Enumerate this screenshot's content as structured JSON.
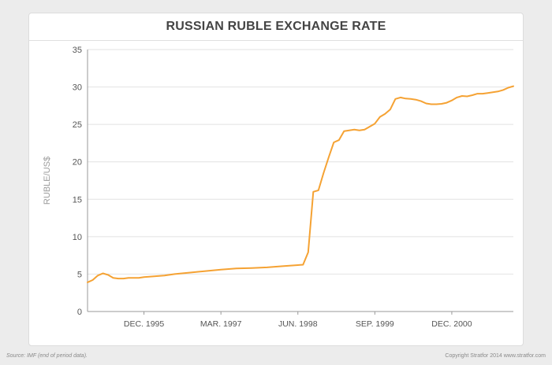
{
  "chart_data": {
    "type": "line",
    "title": "RUSSIAN RUBLE EXCHANGE RATE",
    "ylabel": "RUBLE/US$",
    "xlabel": "",
    "ylim": [
      0,
      35
    ],
    "yticks": [
      0,
      5,
      10,
      15,
      20,
      25,
      30,
      35
    ],
    "xlim": [
      "1995-01",
      "2001-12"
    ],
    "xticks": [
      {
        "label": "DEC. 1995",
        "date": "1995-12"
      },
      {
        "label": "MAR. 1997",
        "date": "1997-03"
      },
      {
        "label": "JUN. 1998",
        "date": "1998-06"
      },
      {
        "label": "SEP. 1999",
        "date": "1999-09"
      },
      {
        "label": "DEC. 2000",
        "date": "2000-12"
      }
    ],
    "grid": true,
    "line_color": "#f5a233",
    "series": [
      {
        "values": [
          [
            "1995-01",
            3.9
          ],
          [
            "1995-02",
            4.2
          ],
          [
            "1995-03",
            4.8
          ],
          [
            "1995-04",
            5.1
          ],
          [
            "1995-05",
            4.9
          ],
          [
            "1995-06",
            4.5
          ],
          [
            "1995-07",
            4.4
          ],
          [
            "1995-08",
            4.4
          ],
          [
            "1995-09",
            4.5
          ],
          [
            "1995-10",
            4.5
          ],
          [
            "1995-11",
            4.5
          ],
          [
            "1995-12",
            4.6
          ],
          [
            "1996-02",
            4.7
          ],
          [
            "1996-04",
            4.8
          ],
          [
            "1996-06",
            5.0
          ],
          [
            "1996-09",
            5.2
          ],
          [
            "1996-12",
            5.4
          ],
          [
            "1997-03",
            5.6
          ],
          [
            "1997-06",
            5.75
          ],
          [
            "1997-09",
            5.8
          ],
          [
            "1997-12",
            5.9
          ],
          [
            "1998-03",
            6.05
          ],
          [
            "1998-06",
            6.2
          ],
          [
            "1998-07",
            6.25
          ],
          [
            "1998-08",
            7.9
          ],
          [
            "1998-09",
            16.0
          ],
          [
            "1998-10",
            16.2
          ],
          [
            "1998-11",
            18.5
          ],
          [
            "1998-12",
            20.6
          ],
          [
            "1999-01",
            22.6
          ],
          [
            "1999-02",
            22.9
          ],
          [
            "1999-03",
            24.1
          ],
          [
            "1999-04",
            24.2
          ],
          [
            "1999-05",
            24.3
          ],
          [
            "1999-06",
            24.2
          ],
          [
            "1999-07",
            24.3
          ],
          [
            "1999-08",
            24.7
          ],
          [
            "1999-09",
            25.1
          ],
          [
            "1999-10",
            26.0
          ],
          [
            "1999-11",
            26.4
          ],
          [
            "1999-12",
            27.0
          ],
          [
            "2000-01",
            28.4
          ],
          [
            "2000-02",
            28.6
          ],
          [
            "2000-03",
            28.45
          ],
          [
            "2000-04",
            28.4
          ],
          [
            "2000-05",
            28.3
          ],
          [
            "2000-06",
            28.1
          ],
          [
            "2000-07",
            27.8
          ],
          [
            "2000-08",
            27.7
          ],
          [
            "2000-09",
            27.7
          ],
          [
            "2000-10",
            27.75
          ],
          [
            "2000-11",
            27.9
          ],
          [
            "2000-12",
            28.2
          ],
          [
            "2001-01",
            28.6
          ],
          [
            "2001-02",
            28.8
          ],
          [
            "2001-03",
            28.75
          ],
          [
            "2001-04",
            28.9
          ],
          [
            "2001-05",
            29.1
          ],
          [
            "2001-06",
            29.1
          ],
          [
            "2001-07",
            29.2
          ],
          [
            "2001-08",
            29.3
          ],
          [
            "2001-09",
            29.4
          ],
          [
            "2001-10",
            29.6
          ],
          [
            "2001-11",
            29.9
          ],
          [
            "2001-12",
            30.1
          ]
        ]
      }
    ]
  },
  "footer": {
    "source": "Source: IMF (end of period data).",
    "copyright": "Copyright Stratfor 2014   www.stratfor.com"
  }
}
